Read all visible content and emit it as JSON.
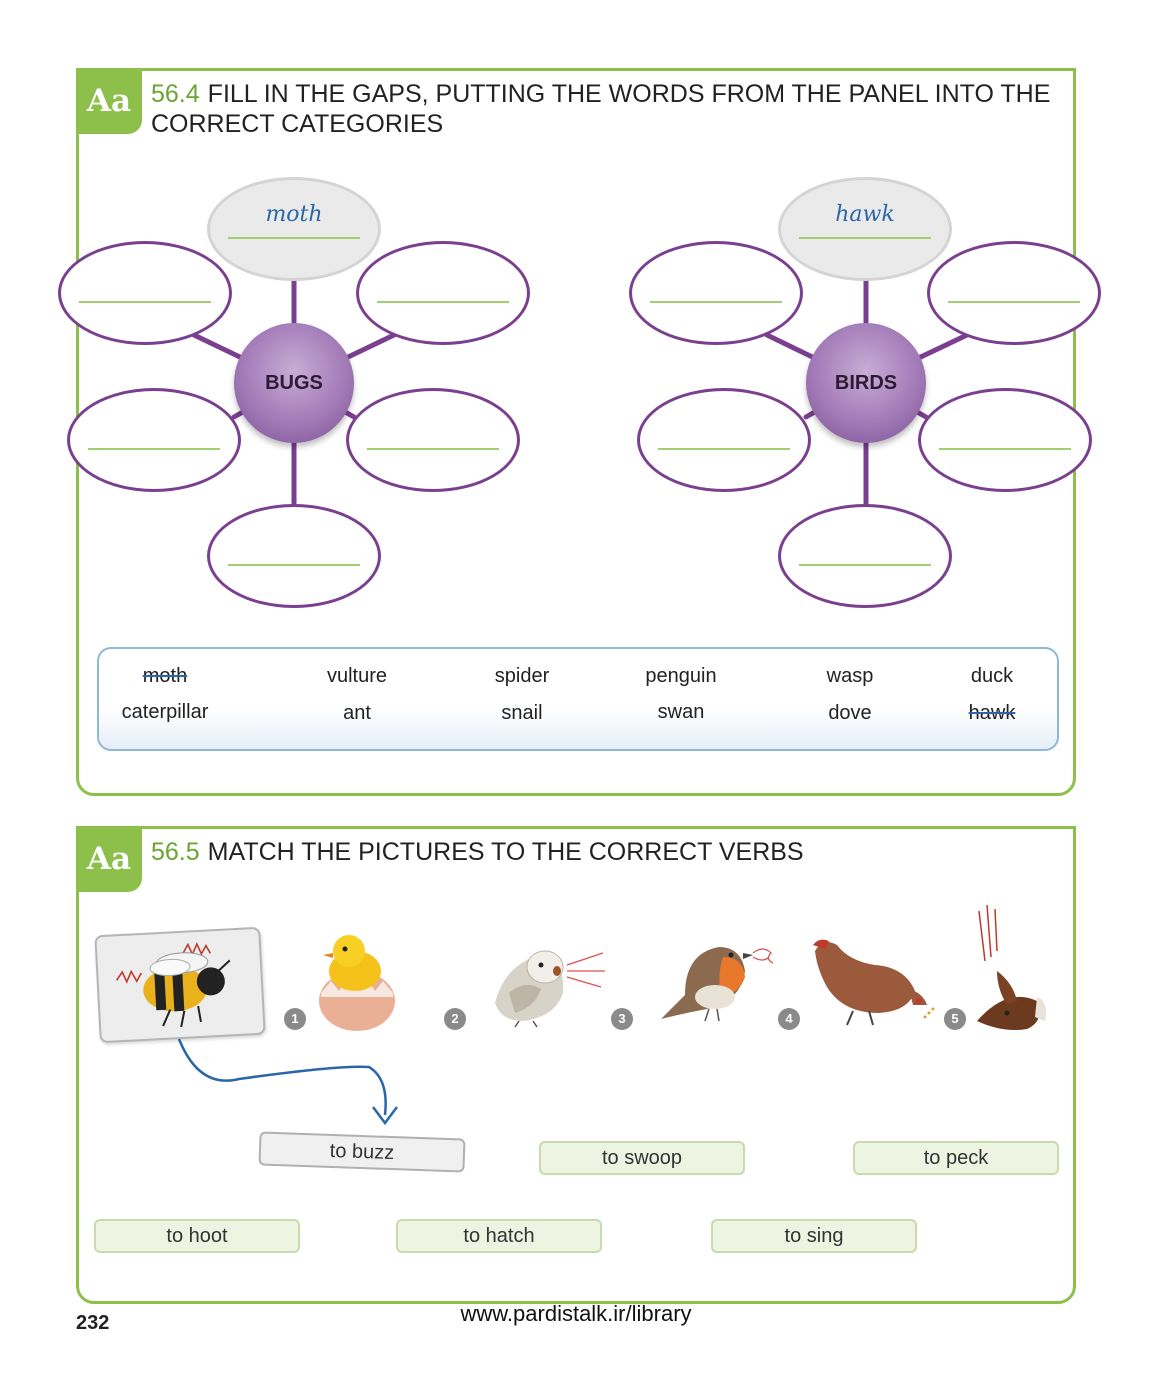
{
  "exercise_1": {
    "badge": "Aa",
    "number": "56.4",
    "title": "FILL IN THE GAPS, PUTTING THE WORDS FROM THE PANEL INTO THE CORRECT CATEGORIES",
    "bugs_hub": "BUGS",
    "birds_hub": "BIRDS",
    "bugs_answer": "moth",
    "birds_answer": "hawk",
    "word_panel": [
      {
        "word": "moth",
        "crossed": true
      },
      {
        "word": "vulture",
        "crossed": false
      },
      {
        "word": "spider",
        "crossed": false
      },
      {
        "word": "penguin",
        "crossed": false
      },
      {
        "word": "wasp",
        "crossed": false
      },
      {
        "word": "duck",
        "crossed": false
      },
      {
        "word": "caterpillar",
        "crossed": false
      },
      {
        "word": "ant",
        "crossed": false
      },
      {
        "word": "snail",
        "crossed": false
      },
      {
        "word": "swan",
        "crossed": false
      },
      {
        "word": "dove",
        "crossed": false
      },
      {
        "word": "hawk",
        "crossed": true
      }
    ]
  },
  "exercise_2": {
    "badge": "Aa",
    "number": "56.5",
    "title": "MATCH THE PICTURES TO THE CORRECT VERBS",
    "picture_numbers": [
      "1",
      "2",
      "3",
      "4",
      "5"
    ],
    "pictures": [
      "bee-buzzing",
      "chick-hatching",
      "owl-hooting",
      "robin-singing",
      "hen-pecking",
      "bird-swooping"
    ],
    "verbs": [
      "to buzz",
      "to swoop",
      "to peck",
      "to hoot",
      "to hatch",
      "to sing"
    ],
    "answered_verb": "to buzz"
  },
  "page_number": "232",
  "footer_url": "www.pardistalk.ir/library"
}
